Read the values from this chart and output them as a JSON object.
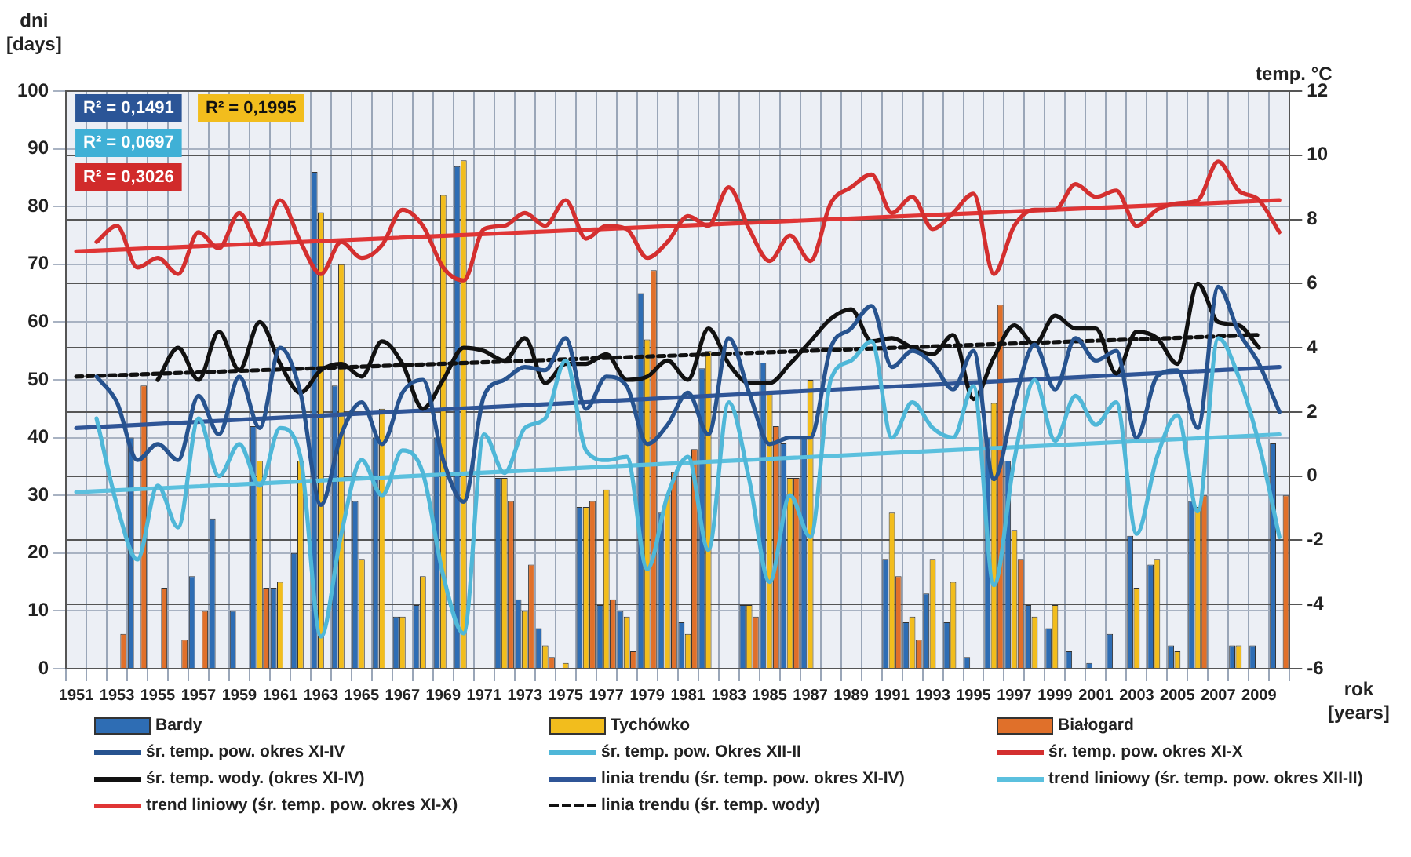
{
  "chart_data": {
    "type": "bar",
    "xlabel": "rok\n[years]",
    "ylabel": "dni\n[days]",
    "y2label": "temp. °C",
    "categories": [
      "1951",
      null,
      "1953",
      null,
      "1955",
      null,
      "1957",
      null,
      "1959",
      null,
      "1961",
      null,
      "1963",
      null,
      "1965",
      null,
      "1967",
      null,
      "1969",
      null,
      "1971",
      null,
      "1973",
      null,
      "1975",
      null,
      "1977",
      null,
      "1979",
      null,
      "1981",
      null,
      "1983",
      null,
      "1985",
      null,
      "1987",
      null,
      "1989",
      null,
      "1991",
      null,
      "1993",
      null,
      "1995",
      null,
      "1997",
      null,
      "1999",
      null,
      "2001",
      null,
      "2003",
      null,
      "2005",
      null,
      "2007",
      null,
      "2009",
      null
    ],
    "ylim": [
      0,
      100
    ],
    "yticks": [
      0,
      10,
      20,
      30,
      40,
      50,
      60,
      70,
      80,
      90,
      100
    ],
    "y2lim": [
      -6,
      12
    ],
    "y2ticks": [
      -6,
      -4,
      -2,
      0,
      2,
      4,
      6,
      8,
      10,
      12
    ],
    "grid": true,
    "legend": "bottom",
    "marker": "none",
    "annotations": [
      "R² = 0,1491",
      "R² = 0,1995",
      "R² = 0,0697",
      "R² = 0,3026"
    ],
    "series": [
      {
        "name": "Bardy",
        "color": "#2e6db4",
        "values": [
          null,
          null,
          null,
          40,
          null,
          null,
          16,
          26,
          10,
          42,
          14,
          20,
          86,
          49,
          29,
          40,
          9,
          11,
          40,
          87,
          null,
          33,
          12,
          7,
          null,
          28,
          11,
          10,
          65,
          27,
          8,
          52,
          null,
          11,
          53,
          39,
          40,
          null,
          null,
          null,
          19,
          8,
          13,
          8,
          2,
          40,
          36,
          11,
          7,
          3,
          1,
          6,
          23,
          18,
          4,
          29,
          null,
          4,
          4,
          39
        ]
      },
      {
        "name": "Tychówko",
        "color": "#f2bd1d",
        "values": [
          null,
          null,
          null,
          null,
          null,
          null,
          null,
          null,
          null,
          36,
          15,
          36,
          79,
          70,
          19,
          45,
          9,
          16,
          82,
          88,
          null,
          33,
          10,
          4,
          1,
          28,
          31,
          9,
          57,
          30,
          6,
          55,
          null,
          11,
          48,
          33,
          50,
          null,
          null,
          null,
          27,
          9,
          19,
          15,
          null,
          46,
          24,
          9,
          11,
          null,
          null,
          null,
          14,
          19,
          3,
          28,
          null,
          4,
          null,
          null
        ]
      },
      {
        "name": "Białogard",
        "color": "#e0702a",
        "values": [
          null,
          null,
          6,
          49,
          14,
          5,
          10,
          null,
          null,
          14,
          null,
          null,
          null,
          null,
          null,
          null,
          null,
          null,
          null,
          null,
          null,
          29,
          18,
          2,
          null,
          29,
          12,
          3,
          69,
          34,
          38,
          null,
          null,
          9,
          42,
          33,
          null,
          null,
          null,
          null,
          16,
          5,
          null,
          null,
          null,
          63,
          19,
          null,
          null,
          null,
          null,
          null,
          null,
          null,
          null,
          30,
          null,
          null,
          null,
          30
        ]
      },
      {
        "name": "śr. temp. pow. okres XI-IV",
        "type": "line",
        "axis": "y2",
        "color": "#27538f",
        "values": [
          null,
          3.1,
          2.3,
          0.5,
          1.0,
          0.5,
          2.5,
          1.3,
          3.1,
          1.5,
          4.0,
          2.6,
          -0.9,
          1.3,
          2.3,
          1.0,
          2.6,
          3.0,
          0.5,
          -0.8,
          2.5,
          3.0,
          3.4,
          3.3,
          4.3,
          2.1,
          3.1,
          2.8,
          1.0,
          1.6,
          2.6,
          1.3,
          4.3,
          2.6,
          1.0,
          1.2,
          1.2,
          4.0,
          4.6,
          5.3,
          3.4,
          3.9,
          3.5,
          2.7,
          3.9,
          -0.1,
          2.3,
          4.1,
          2.7,
          4.3,
          3.6,
          3.9,
          1.2,
          3.1,
          3.3,
          1.5,
          5.9,
          4.5,
          3.5,
          2.0
        ]
      },
      {
        "name": "śr. temp. pow. Okres XII-II",
        "type": "line",
        "axis": "y2",
        "color": "#4fb7d8",
        "values": [
          null,
          1.8,
          -0.9,
          -2.6,
          -0.3,
          -1.6,
          1.8,
          0.0,
          1.0,
          -0.3,
          1.5,
          0.6,
          -5.0,
          -1.8,
          0.5,
          -0.6,
          0.8,
          0.1,
          -3.1,
          -4.9,
          1.3,
          0.1,
          1.5,
          1.8,
          3.6,
          0.8,
          0.5,
          0.6,
          -2.9,
          -0.6,
          0.6,
          -2.3,
          2.3,
          -0.1,
          -3.3,
          -0.6,
          -1.9,
          3.0,
          3.6,
          4.2,
          1.2,
          2.3,
          1.5,
          1.2,
          2.8,
          -3.4,
          0.5,
          3.0,
          1.1,
          2.5,
          1.6,
          2.3,
          -1.8,
          0.6,
          1.9,
          -1.1,
          4.3,
          3.1,
          1.0,
          -1.9
        ]
      },
      {
        "name": "śr. temp. pow. okres XI-X",
        "type": "line",
        "axis": "y2",
        "color": "#d42f2f",
        "values": [
          null,
          7.3,
          7.8,
          6.5,
          6.8,
          6.3,
          7.6,
          7.1,
          8.2,
          7.2,
          8.6,
          7.3,
          6.3,
          7.3,
          6.8,
          7.2,
          8.3,
          7.8,
          6.5,
          6.1,
          7.7,
          7.8,
          8.2,
          7.8,
          8.6,
          7.4,
          7.8,
          7.7,
          6.8,
          7.3,
          8.1,
          7.8,
          9.0,
          7.7,
          6.7,
          7.5,
          6.7,
          8.5,
          9.0,
          9.4,
          8.2,
          8.7,
          7.7,
          8.2,
          8.8,
          6.3,
          7.8,
          8.3,
          8.3,
          9.1,
          8.7,
          8.9,
          7.8,
          8.3,
          8.5,
          8.6,
          9.8,
          8.9,
          8.6,
          7.6
        ]
      },
      {
        "name": "śr. temp. wody. (okres XI-IV)",
        "type": "line",
        "axis": "y2",
        "color": "#111111",
        "values": [
          null,
          null,
          null,
          null,
          3.0,
          4.0,
          3.0,
          4.5,
          3.3,
          4.8,
          3.5,
          2.6,
          3.3,
          3.5,
          3.1,
          4.2,
          3.5,
          2.1,
          3.0,
          4.0,
          3.9,
          3.6,
          4.3,
          2.9,
          3.5,
          3.5,
          3.8,
          3.0,
          3.1,
          3.6,
          3.0,
          4.6,
          3.5,
          2.9,
          2.9,
          3.5,
          4.2,
          4.9,
          5.2,
          4.2,
          4.3,
          4.0,
          3.8,
          4.4,
          2.4,
          3.7,
          4.7,
          4.1,
          5.0,
          4.6,
          4.6,
          3.2,
          4.5,
          4.3,
          3.5,
          6.0,
          4.8,
          4.7,
          4.0,
          null
        ]
      },
      {
        "name": "linia trendu (śr. temp. pow. okres XI-IV)",
        "type": "line",
        "axis": "y2",
        "color": "#2f5597",
        "values": [
          1.5,
          null,
          null,
          null,
          null,
          null,
          null,
          null,
          null,
          null,
          null,
          null,
          null,
          null,
          null,
          null,
          null,
          null,
          null,
          null,
          null,
          null,
          null,
          null,
          null,
          null,
          null,
          null,
          null,
          null,
          null,
          null,
          null,
          null,
          null,
          null,
          null,
          null,
          null,
          null,
          null,
          null,
          null,
          null,
          null,
          null,
          null,
          null,
          null,
          null,
          null,
          null,
          null,
          null,
          null,
          null,
          null,
          null,
          null,
          3.4
        ]
      },
      {
        "name": "trend liniowy (śr. temp. pow. okres XII-II)",
        "type": "line",
        "axis": "y2",
        "color": "#5bc0de",
        "values": [
          -0.5,
          null,
          null,
          null,
          null,
          null,
          null,
          null,
          null,
          null,
          null,
          null,
          null,
          null,
          null,
          null,
          null,
          null,
          null,
          null,
          null,
          null,
          null,
          null,
          null,
          null,
          null,
          null,
          null,
          null,
          null,
          null,
          null,
          null,
          null,
          null,
          null,
          null,
          null,
          null,
          null,
          null,
          null,
          null,
          null,
          null,
          null,
          null,
          null,
          null,
          null,
          null,
          null,
          null,
          null,
          null,
          null,
          null,
          null,
          1.3
        ]
      },
      {
        "name": "trend liniowy (śr. temp. pow. okres XI-X)",
        "type": "line",
        "axis": "y2",
        "color": "#e03535",
        "values": [
          7.0,
          null,
          null,
          null,
          null,
          null,
          null,
          null,
          null,
          null,
          null,
          null,
          null,
          null,
          null,
          null,
          null,
          null,
          null,
          null,
          null,
          null,
          null,
          null,
          null,
          null,
          null,
          null,
          null,
          null,
          null,
          null,
          null,
          null,
          null,
          null,
          null,
          null,
          null,
          null,
          null,
          null,
          null,
          null,
          null,
          null,
          null,
          null,
          null,
          null,
          null,
          null,
          null,
          null,
          null,
          null,
          null,
          null,
          null,
          8.6
        ]
      },
      {
        "name": "linia trendu (śr. temp. wody)",
        "type": "line",
        "axis": "y2",
        "line_style": "dashed",
        "color": "#111111",
        "values": [
          3.1,
          null,
          null,
          null,
          null,
          null,
          null,
          null,
          null,
          null,
          null,
          null,
          null,
          null,
          null,
          null,
          null,
          null,
          null,
          null,
          null,
          null,
          null,
          null,
          null,
          null,
          null,
          null,
          null,
          null,
          null,
          null,
          null,
          null,
          null,
          null,
          null,
          null,
          null,
          null,
          null,
          null,
          null,
          null,
          null,
          null,
          null,
          null,
          null,
          null,
          null,
          null,
          null,
          null,
          null,
          null,
          null,
          null,
          4.4,
          null
        ]
      }
    ]
  }
}
